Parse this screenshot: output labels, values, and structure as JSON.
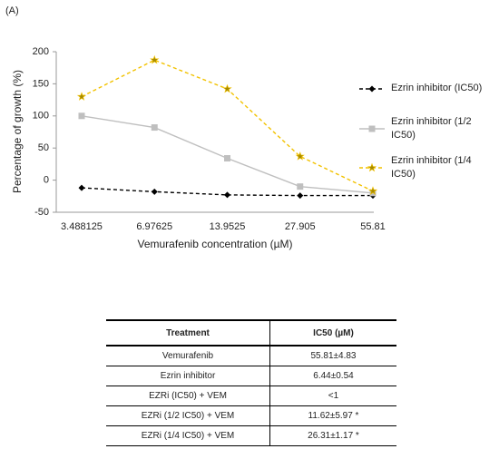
{
  "panel_label": "(A)",
  "chart_data": {
    "type": "line",
    "ylabel": "Percentage of growth (%)",
    "xlabel": "Vemurafenib concentration (µM)",
    "categories": [
      "3.488125",
      "6.97625",
      "13.9525",
      "27.905",
      "55.81"
    ],
    "ylim": [
      -50,
      200
    ],
    "yticks": [
      -50,
      0,
      50,
      100,
      150,
      200
    ],
    "legend": "right",
    "series": [
      {
        "name": "Ezrin inhibitor (IC50)",
        "color": "#000000",
        "marker": "diamond",
        "dashed": true,
        "values": [
          -12,
          -18,
          -23,
          -24,
          -24
        ]
      },
      {
        "name": "Ezrin inhibitor (1/2 IC50)",
        "color": "#bfbfbf",
        "marker": "square",
        "dashed": false,
        "values": [
          100,
          82,
          34,
          -10,
          -20
        ]
      },
      {
        "name": "Ezrin inhibitor (1/4 IC50)",
        "color": "#f2c200",
        "marker": "star",
        "dashed": true,
        "values": [
          130,
          187,
          142,
          37,
          -17
        ]
      }
    ]
  },
  "table": {
    "header": [
      "Treatment",
      "IC50 (µM)"
    ],
    "rows": [
      [
        "Vemurafenib",
        "55.81±4.83"
      ],
      [
        "Ezrin inhibitor",
        "6.44±0.54"
      ],
      [
        "EZRi (IC50) + VEM",
        "<1"
      ],
      [
        "EZRi (1/2 IC50) + VEM",
        "11.62±5.97 *"
      ],
      [
        "EZRi (1/4 IC50) + VEM",
        "26.31±1.17 *"
      ]
    ]
  }
}
